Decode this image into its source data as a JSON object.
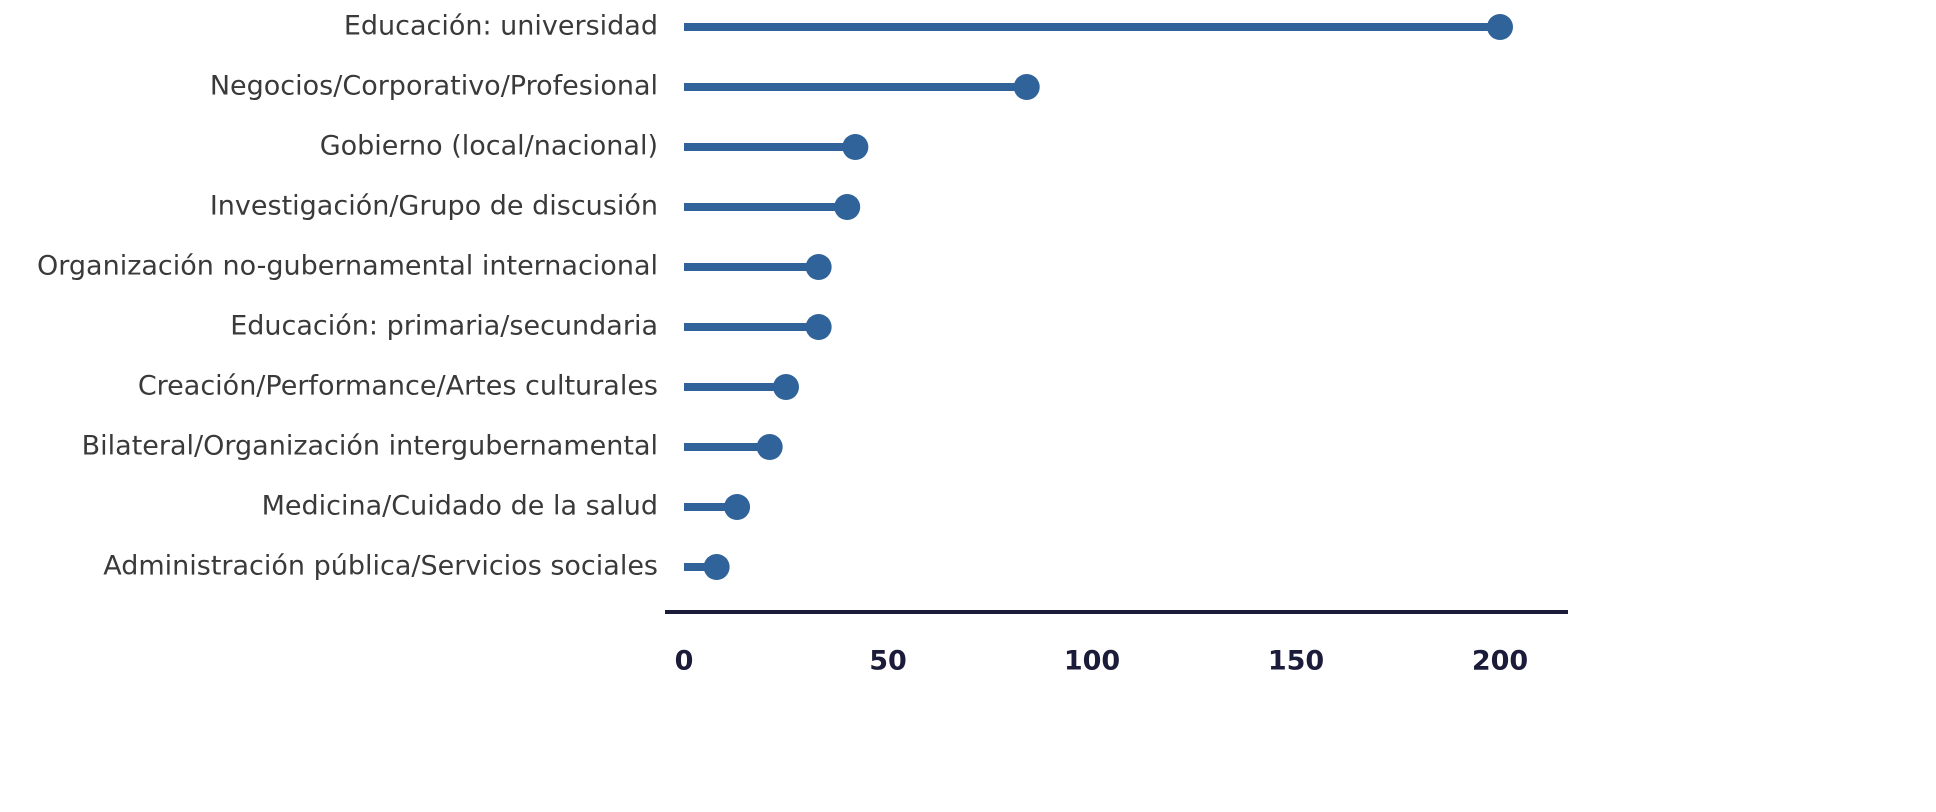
{
  "chart_data": {
    "type": "lollipop",
    "orientation": "horizontal",
    "categories": [
      "Educación: universidad",
      "Negocios/Corporativo/Profesional",
      "Gobierno (local/nacional)",
      "Investigación/Grupo de discusión",
      "Organización no-gubernamental internacional",
      "Educación: primaria/secundaria",
      "Creación/Performance/Artes culturales",
      "Bilateral/Organización intergubernamental",
      "Medicina/Cuidado de la salud",
      "Administración pública/Servicios sociales"
    ],
    "values": [
      200,
      84,
      42,
      40,
      33,
      33,
      25,
      21,
      13,
      8
    ],
    "color": "#2f6399",
    "xlim": [
      0,
      200
    ],
    "xticks": [
      0,
      50,
      100,
      150,
      200
    ],
    "grid": false
  }
}
